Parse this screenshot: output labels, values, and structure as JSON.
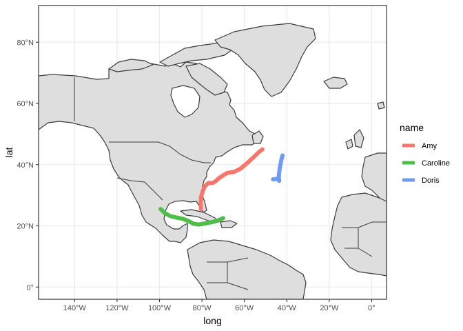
{
  "chart_data": {
    "type": "map",
    "xlabel": "long",
    "ylabel": "lat",
    "xlim": [
      -157,
      7
    ],
    "ylim": [
      -4,
      92
    ],
    "x_ticks": [
      {
        "value": -140,
        "label": "140°W"
      },
      {
        "value": -120,
        "label": "120°W"
      },
      {
        "value": -100,
        "label": "100°W"
      },
      {
        "value": -80,
        "label": "80°W"
      },
      {
        "value": -60,
        "label": "60°W"
      },
      {
        "value": -40,
        "label": "40°W"
      },
      {
        "value": -20,
        "label": "20°W"
      },
      {
        "value": 0,
        "label": "0°"
      }
    ],
    "y_ticks": [
      {
        "value": 0,
        "label": "0°"
      },
      {
        "value": 20,
        "label": "20°N"
      },
      {
        "value": 40,
        "label": "40°N"
      },
      {
        "value": 60,
        "label": "60°N"
      },
      {
        "value": 80,
        "label": "80°N"
      }
    ],
    "grid": true,
    "legend": {
      "title": "name",
      "position": "right"
    },
    "series": [
      {
        "name": "Amy",
        "color": "#F8766D",
        "points": [
          [
            -80.5,
            25.5
          ],
          [
            -80.6,
            27.5
          ],
          [
            -80.4,
            29.5
          ],
          [
            -79.5,
            31.5
          ],
          [
            -78.5,
            33.0
          ],
          [
            -77.0,
            34.0
          ],
          [
            -75.0,
            34.0
          ],
          [
            -73.5,
            34.6
          ],
          [
            -72.0,
            35.6
          ],
          [
            -70.0,
            36.5
          ],
          [
            -68.0,
            37.3
          ],
          [
            -65.0,
            37.6
          ],
          [
            -62.0,
            38.6
          ],
          [
            -59.0,
            40.3
          ],
          [
            -56.0,
            42.2
          ],
          [
            -53.0,
            44.2
          ],
          [
            -51.5,
            45.0
          ]
        ]
      },
      {
        "name": "Caroline",
        "color": "#4DBE47",
        "points": [
          [
            -99.5,
            25.5
          ],
          [
            -97.5,
            24.2
          ],
          [
            -95.0,
            23.2
          ],
          [
            -92.0,
            22.7
          ],
          [
            -89.0,
            22.3
          ],
          [
            -86.5,
            21.6
          ],
          [
            -84.0,
            20.7
          ],
          [
            -81.5,
            20.4
          ],
          [
            -78.5,
            20.8
          ],
          [
            -75.5,
            21.2
          ],
          [
            -73.0,
            21.6
          ],
          [
            -70.0,
            22.5
          ]
        ]
      },
      {
        "name": "Doris",
        "color": "#6E9AF8",
        "points": [
          [
            -46.5,
            35.2
          ],
          [
            -45.0,
            35.3
          ],
          [
            -44.0,
            35.5
          ],
          [
            -43.6,
            34.7
          ],
          [
            -43.8,
            36.0
          ],
          [
            -43.5,
            38.0
          ],
          [
            -43.0,
            40.0
          ],
          [
            -42.5,
            41.8
          ],
          [
            -42.0,
            43.0
          ]
        ]
      }
    ]
  }
}
